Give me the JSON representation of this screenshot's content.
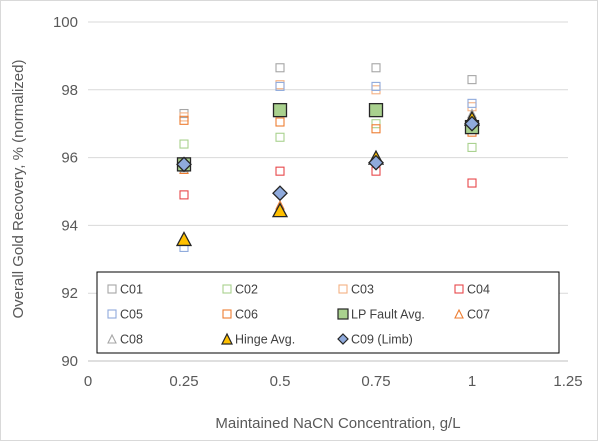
{
  "chart_data": {
    "type": "scatter",
    "xlabel": "Maintained NaCN Concentration, g/L",
    "ylabel": "Overall Gold Recovery, % (normalized)",
    "xlim": [
      0,
      1.25
    ],
    "ylim": [
      90,
      100
    ],
    "x_ticks": [
      0,
      0.25,
      0.5,
      0.75,
      1,
      1.25
    ],
    "x_tick_labels": [
      "0",
      "0.25",
      "0.5",
      "0.75",
      "1",
      "1.25"
    ],
    "y_ticks": [
      90,
      92,
      94,
      96,
      98,
      100
    ],
    "y_tick_labels": [
      "90",
      "92",
      "94",
      "96",
      "98",
      "100"
    ],
    "grid": "horizontal",
    "legend_position": "bottom-inside",
    "series": [
      {
        "name": "C01",
        "marker": "square-open",
        "color": "#a6a6a6",
        "x": [
          0.25,
          0.5,
          0.75,
          1
        ],
        "y": [
          97.3,
          98.65,
          98.65,
          98.3
        ]
      },
      {
        "name": "C02",
        "marker": "square-open",
        "color": "#a9d18e",
        "x": [
          0.25,
          0.5,
          0.75,
          1
        ],
        "y": [
          96.4,
          96.6,
          97.0,
          96.3
        ]
      },
      {
        "name": "C03",
        "marker": "square-open",
        "color": "#f4b183",
        "x": [
          0.25,
          0.5,
          0.75,
          1
        ],
        "y": [
          97.2,
          98.15,
          98.0,
          97.5
        ]
      },
      {
        "name": "C04",
        "marker": "square-open",
        "color": "#e8474a",
        "x": [
          0.25,
          0.5,
          0.75,
          1
        ],
        "y": [
          94.9,
          95.6,
          95.6,
          95.25
        ]
      },
      {
        "name": "C05",
        "marker": "square-open",
        "color": "#8faadc",
        "x": [
          0.25,
          0.5,
          0.75,
          1
        ],
        "y": [
          93.35,
          98.1,
          98.1,
          97.6
        ]
      },
      {
        "name": "C06",
        "marker": "square-open",
        "color": "#ed7d31",
        "x": [
          0.25,
          0.5,
          0.75,
          1
        ],
        "y": [
          97.1,
          97.05,
          96.85,
          96.75
        ]
      },
      {
        "name": "LP Fault Avg.",
        "marker": "square-filled",
        "color": "#a9d18e",
        "x": [
          0.25,
          0.5,
          0.75,
          1
        ],
        "y": [
          95.8,
          97.4,
          97.4,
          96.9
        ]
      },
      {
        "name": "C07",
        "marker": "triangle-open",
        "color": "#ed7d31",
        "x": [
          0.25,
          0.5,
          0.75,
          1
        ],
        "y": [
          95.65,
          94.6,
          95.95,
          97.25
        ]
      },
      {
        "name": "C08",
        "marker": "triangle-open",
        "color": "#a6a6a6",
        "x": [
          0.25,
          0.5,
          0.75,
          1
        ],
        "y": [
          95.7,
          94.5,
          96.0,
          97.3
        ]
      },
      {
        "name": "Hinge Avg.",
        "marker": "triangle-filled",
        "color": "#ffc000",
        "x": [
          0.25,
          0.5,
          0.75,
          1
        ],
        "y": [
          93.6,
          94.45,
          96.0,
          97.15
        ]
      },
      {
        "name": "C09 (Limb)",
        "marker": "diamond-filled",
        "color": "#8faadc",
        "x": [
          0.25,
          0.5,
          0.75,
          1
        ],
        "y": [
          95.8,
          94.95,
          95.85,
          97.0
        ]
      }
    ]
  }
}
